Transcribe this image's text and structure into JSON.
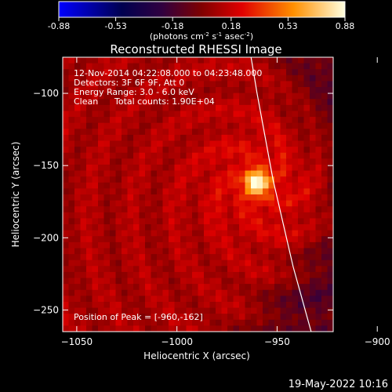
{
  "chart_data": {
    "type": "heatmap",
    "title": "Reconstructed RHESSI Image",
    "xlabel": "Heliocentric X (arcsec)",
    "ylabel": "Heliocentric Y (arcsec)",
    "xlim": [
      -1057,
      -922
    ],
    "ylim": [
      -265,
      -75
    ],
    "x_ticks": [
      -1050,
      -1000,
      -950,
      -900
    ],
    "y_ticks": [
      -100,
      -150,
      -200,
      -250
    ],
    "colorbar": {
      "label": "(photons cm",
      "label_sup1": "-2",
      "label_mid1": " s",
      "label_sup2": "-1",
      "label_mid2": " asec",
      "label_sup3": "-2",
      "label_end": ")",
      "min": -0.88,
      "max": 0.88,
      "ticks": [
        "-0.88",
        "-0.53",
        "-0.18",
        "0.18",
        "0.53",
        "0.88"
      ]
    },
    "peak": {
      "x": -960,
      "y": -162,
      "value": 0.88
    },
    "limb": [
      [
        -963,
        -75
      ],
      [
        -960,
        -100
      ],
      [
        -956,
        -130
      ],
      [
        -952,
        -160
      ],
      [
        -947,
        -190
      ],
      [
        -942,
        -220
      ],
      [
        -937,
        -245
      ],
      [
        -933,
        -265
      ]
    ],
    "annotations": {
      "line1": "12-Nov-2014 04:22:08.000 to 04:23:48.000",
      "line2": "Detectors: 3F 6F 9F, Att 0",
      "line3": "Energy Range: 3.0 - 6.0 keV",
      "line4_a": "Clean",
      "line4_b": "Total counts: 1.90E+04",
      "peak_text": "Position of Peak = [-960,-162]"
    }
  },
  "footer": {
    "timestamp": "19-May-2022 10:16"
  }
}
